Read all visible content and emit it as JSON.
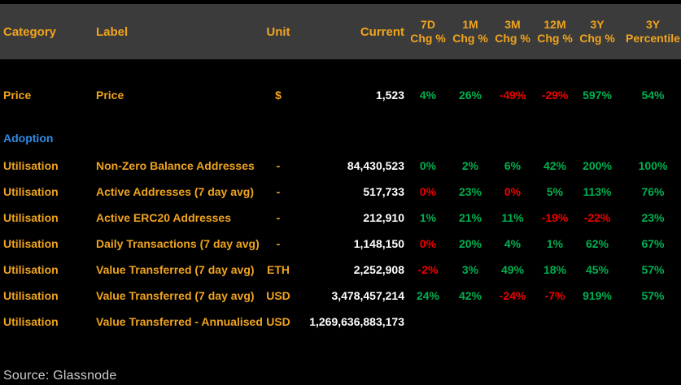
{
  "colors": {
    "bg": "#000000",
    "header_bg": "#3B3B3B",
    "orange": "#F0A41E",
    "blue": "#2E8BE6",
    "green": "#00B050",
    "red": "#F00000",
    "white": "#FFFFFF",
    "source": "#CCCCCC"
  },
  "source": "Source:  Glassnode",
  "table": {
    "header": {
      "category": "Category",
      "label": "Label",
      "unit": "Unit",
      "current": "Current",
      "periods": [
        {
          "top": "7D",
          "bottom": "Chg %"
        },
        {
          "top": "1M",
          "bottom": "Chg %"
        },
        {
          "top": "3M",
          "bottom": "Chg %"
        },
        {
          "top": "12M",
          "bottom": "Chg %"
        },
        {
          "top": "3Y",
          "bottom": "Chg %"
        },
        {
          "top": "3Y",
          "bottom": "Percentile"
        }
      ]
    },
    "rows": [
      {
        "type": "price",
        "category": "Price",
        "label": "Price",
        "unit": "$",
        "current": "1,523",
        "pcts": [
          {
            "t": "4%",
            "c": "green"
          },
          {
            "t": "26%",
            "c": "green"
          },
          {
            "t": "-49%",
            "c": "red"
          },
          {
            "t": "-29%",
            "c": "red"
          },
          {
            "t": "597%",
            "c": "green"
          },
          {
            "t": "54%",
            "c": "green"
          }
        ]
      },
      {
        "type": "section",
        "category": "Adoption"
      },
      {
        "type": "data",
        "category": "Utilisation",
        "label": "Non-Zero Balance Addresses",
        "unit": "-",
        "current": "84,430,523",
        "pcts": [
          {
            "t": "0%",
            "c": "green"
          },
          {
            "t": "2%",
            "c": "green"
          },
          {
            "t": "6%",
            "c": "green"
          },
          {
            "t": "42%",
            "c": "green"
          },
          {
            "t": "200%",
            "c": "green"
          },
          {
            "t": "100%",
            "c": "green"
          }
        ]
      },
      {
        "type": "data",
        "category": "Utilisation",
        "label": "Active Addresses (7 day avg)",
        "unit": "-",
        "current": "517,733",
        "pcts": [
          {
            "t": "0%",
            "c": "red"
          },
          {
            "t": "23%",
            "c": "green"
          },
          {
            "t": "0%",
            "c": "red"
          },
          {
            "t": "5%",
            "c": "green"
          },
          {
            "t": "113%",
            "c": "green"
          },
          {
            "t": "76%",
            "c": "green"
          }
        ]
      },
      {
        "type": "data",
        "category": "Utilisation",
        "label": "Active ERC20 Addresses",
        "unit": "-",
        "current": "212,910",
        "pcts": [
          {
            "t": "1%",
            "c": "green"
          },
          {
            "t": "21%",
            "c": "green"
          },
          {
            "t": "11%",
            "c": "green"
          },
          {
            "t": "-19%",
            "c": "red"
          },
          {
            "t": "-22%",
            "c": "red"
          },
          {
            "t": "23%",
            "c": "green"
          }
        ]
      },
      {
        "type": "data",
        "category": "Utilisation",
        "label": "Daily Transactions (7 day avg)",
        "unit": "-",
        "current": "1,148,150",
        "pcts": [
          {
            "t": "0%",
            "c": "red"
          },
          {
            "t": "20%",
            "c": "green"
          },
          {
            "t": "4%",
            "c": "green"
          },
          {
            "t": "1%",
            "c": "green"
          },
          {
            "t": "62%",
            "c": "green"
          },
          {
            "t": "67%",
            "c": "green"
          }
        ]
      },
      {
        "type": "data",
        "category": "Utilisation",
        "label": "Value Transferred (7 day avg)",
        "unit": "ETH",
        "current": "2,252,908",
        "pcts": [
          {
            "t": "-2%",
            "c": "red"
          },
          {
            "t": "3%",
            "c": "green"
          },
          {
            "t": "49%",
            "c": "green"
          },
          {
            "t": "18%",
            "c": "green"
          },
          {
            "t": "45%",
            "c": "green"
          },
          {
            "t": "57%",
            "c": "green"
          }
        ]
      },
      {
        "type": "data",
        "category": "Utilisation",
        "label": "Value Transferred (7 day avg)",
        "unit": "USD",
        "current": "3,478,457,214",
        "pcts": [
          {
            "t": "24%",
            "c": "green"
          },
          {
            "t": "42%",
            "c": "green"
          },
          {
            "t": "-24%",
            "c": "red"
          },
          {
            "t": "-7%",
            "c": "red"
          },
          {
            "t": "919%",
            "c": "green"
          },
          {
            "t": "57%",
            "c": "green"
          }
        ]
      },
      {
        "type": "data",
        "category": "Utilisation",
        "label": "Value Transferred - Annualised",
        "unit": "USD",
        "current": "1,269,636,883,173",
        "pcts": [
          {
            "t": "",
            "c": "green"
          },
          {
            "t": "",
            "c": "green"
          },
          {
            "t": "",
            "c": "green"
          },
          {
            "t": "",
            "c": "green"
          },
          {
            "t": "",
            "c": "green"
          },
          {
            "t": "",
            "c": "green"
          }
        ]
      }
    ]
  }
}
